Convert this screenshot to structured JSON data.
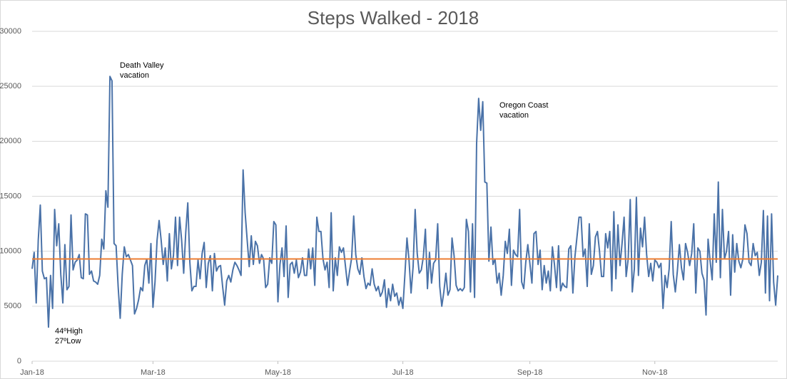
{
  "chart_data": {
    "type": "line",
    "title": "Steps Walked - 2018",
    "series": [
      {
        "color": "#4a72a8",
        "values": [
          8400,
          9900,
          5300,
          11000,
          14200,
          8200,
          7500,
          7600,
          3100,
          7800,
          4800,
          13800,
          10500,
          12500,
          7900,
          5300,
          10600,
          6500,
          6800,
          13300,
          8300,
          9000,
          9200,
          9700,
          7600,
          7500,
          13400,
          13300,
          7900,
          8200,
          7300,
          7200,
          7000,
          7800,
          11100,
          10200,
          15500,
          14000,
          25900,
          25500,
          10700,
          10500,
          6800,
          3900,
          7900,
          10400,
          9500,
          9700,
          9200,
          8700,
          4300,
          4800,
          5600,
          6700,
          6400,
          8700,
          9300,
          7100,
          10700,
          4900,
          7200,
          11000,
          12800,
          11000,
          8800,
          10300,
          7300,
          11600,
          8400,
          9600,
          13100,
          8700,
          13100,
          11000,
          8000,
          11700,
          14400,
          9000,
          6400,
          6800,
          6800,
          9200,
          7500,
          9800,
          10800,
          6700,
          8900,
          9600,
          6400,
          9800,
          8200,
          8600,
          8700,
          6800,
          5100,
          7300,
          7800,
          7200,
          8300,
          9000,
          8700,
          8300,
          7800,
          17400,
          13500,
          11000,
          8600,
          11400,
          8800,
          10900,
          10500,
          8900,
          9700,
          9300,
          6700,
          7000,
          9400,
          8900,
          12700,
          12400,
          5400,
          8800,
          10300,
          7700,
          12300,
          5800,
          8800,
          9000,
          8000,
          9200,
          7600,
          8100,
          9400,
          7800,
          7800,
          10200,
          8400,
          10300,
          6900,
          13100,
          11800,
          11800,
          9300,
          8300,
          9000,
          6700,
          13500,
          6400,
          9400,
          7800,
          10400,
          9900,
          10300,
          8600,
          6900,
          8200,
          9400,
          13200,
          9700,
          8400,
          7900,
          9400,
          7700,
          6600,
          7100,
          6900,
          8400,
          7000,
          6400,
          6800,
          5900,
          6300,
          7400,
          4900,
          6600,
          5500,
          7000,
          5900,
          6200,
          5100,
          5800,
          4800,
          7900,
          11200,
          9200,
          6200,
          8600,
          13800,
          9800,
          8000,
          8300,
          9500,
          12000,
          6600,
          9900,
          7100,
          8900,
          9200,
          12500,
          6800,
          5000,
          6300,
          8000,
          6000,
          6500,
          11200,
          9600,
          6900,
          6400,
          6600,
          6400,
          6700,
          12900,
          11800,
          6300,
          12500,
          5800,
          19800,
          23900,
          21000,
          23600,
          16300,
          16200,
          9100,
          12200,
          8800,
          9300,
          7100,
          8000,
          6000,
          7800,
          10900,
          9800,
          12000,
          6900,
          10100,
          9700,
          9500,
          13800,
          7200,
          6600,
          9000,
          10600,
          8900,
          7100,
          11600,
          11800,
          8800,
          10100,
          6500,
          8700,
          7100,
          8200,
          6400,
          10400,
          8800,
          6700,
          10500,
          6400,
          7100,
          6800,
          6700,
          10200,
          10500,
          6200,
          9500,
          11300,
          13100,
          13100,
          9500,
          10200,
          6800,
          12500,
          7900,
          8700,
          11300,
          11800,
          10000,
          7700,
          7700,
          11600,
          10300,
          11800,
          6400,
          13600,
          7500,
          12400,
          8700,
          10700,
          13100,
          7700,
          9300,
          14700,
          6300,
          8400,
          14900,
          7800,
          12100,
          10400,
          13100,
          9700,
          7700,
          8900,
          7300,
          9200,
          9000,
          8500,
          8900,
          4800,
          7800,
          6700,
          8400,
          12700,
          7900,
          6300,
          8200,
          10600,
          8500,
          7400,
          10700,
          9900,
          8700,
          9800,
          12500,
          6200,
          10300,
          10000,
          8000,
          7400,
          4200,
          11100,
          9100,
          7400,
          13400,
          9000,
          16300,
          7600,
          13800,
          9300,
          10000,
          11800,
          6000,
          11500,
          8100,
          10700,
          9100,
          8500,
          9300,
          12400,
          11600,
          9000,
          8700,
          10700,
          9600,
          9900,
          7800,
          9000,
          13700,
          6200,
          13200,
          5500,
          13400,
          7200,
          5100,
          7800
        ]
      }
    ],
    "reference_line": {
      "value": 9300,
      "color": "#ed7d31"
    },
    "xlim": [
      0,
      364
    ],
    "xticks": [
      {
        "value": 0,
        "label": "Jan-18"
      },
      {
        "value": 59,
        "label": "Mar-18"
      },
      {
        "value": 120,
        "label": "May-18"
      },
      {
        "value": 181,
        "label": "Jul-18"
      },
      {
        "value": 243,
        "label": "Sep-18"
      },
      {
        "value": 304,
        "label": "Nov-18"
      }
    ],
    "ylim": [
      0,
      30000
    ],
    "yticks": [
      0,
      5000,
      10000,
      15000,
      20000,
      25000,
      30000
    ],
    "grid": true,
    "annotations": [
      {
        "lines": [
          "Death Valley",
          "vacation"
        ]
      },
      {
        "lines": [
          "Oregon Coast",
          "vacation"
        ]
      },
      {
        "lines": [
          "44ºHigh",
          "27ºLow"
        ]
      }
    ]
  }
}
